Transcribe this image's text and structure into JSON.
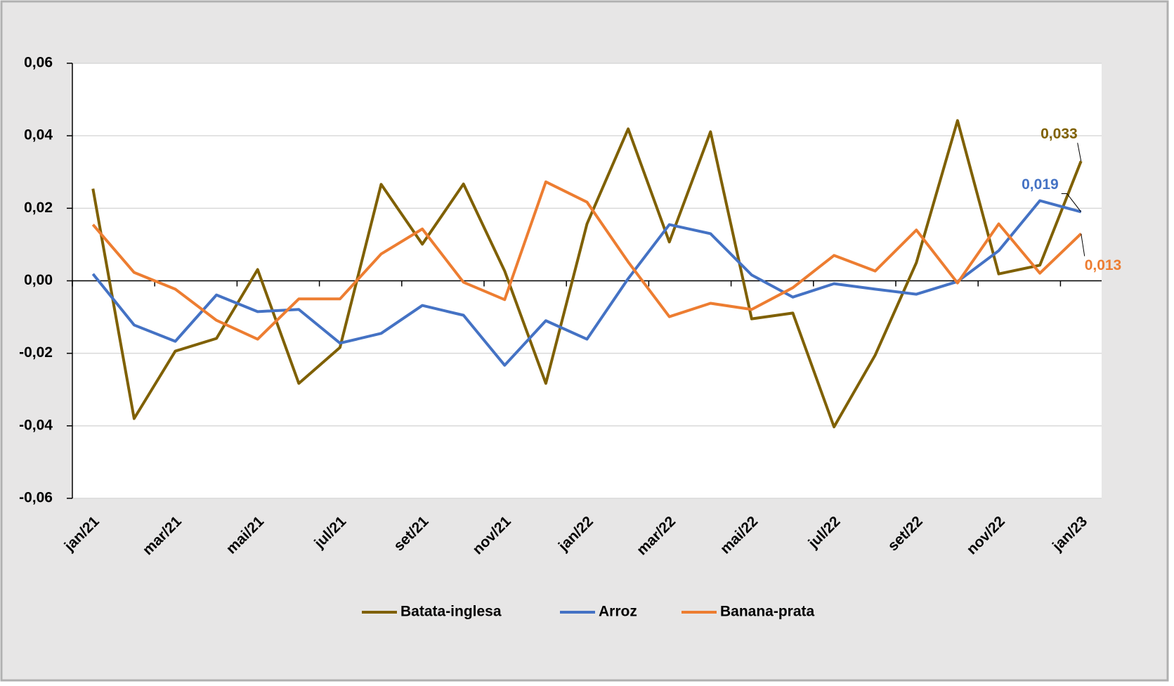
{
  "chart_data": {
    "type": "line",
    "categories": [
      "jan/21",
      null,
      "mar/21",
      null,
      "mai/21",
      null,
      "jul/21",
      null,
      "set/21",
      null,
      "nov/21",
      null,
      "jan/22",
      null,
      "mar/22",
      null,
      "mai/22",
      null,
      "jul/22",
      null,
      "set/22",
      null,
      "nov/22",
      null,
      "jan/23"
    ],
    "series": [
      {
        "name": "Batata-inglesa",
        "color": "#7f6000",
        "values": [
          0.0254,
          -0.038,
          -0.0194,
          -0.0159,
          0.0031,
          -0.0283,
          -0.0184,
          0.0266,
          0.0101,
          0.0267,
          0.0027,
          -0.0283,
          0.0157,
          0.0419,
          0.0107,
          0.0411,
          -0.0105,
          -0.0089,
          -0.0403,
          -0.0205,
          0.005,
          0.0442,
          0.0019,
          0.0043,
          0.033
        ],
        "value_labels": [
          null,
          null,
          null,
          null,
          null,
          null,
          null,
          null,
          null,
          null,
          null,
          null,
          null,
          null,
          null,
          null,
          null,
          null,
          null,
          null,
          null,
          null,
          null,
          null,
          "0,033"
        ]
      },
      {
        "name": "Arroz",
        "color": "#4472c4",
        "values": [
          0.0019,
          -0.0122,
          -0.0167,
          -0.0039,
          -0.0085,
          -0.0079,
          -0.0172,
          -0.0145,
          -0.0068,
          -0.0095,
          -0.0233,
          -0.011,
          -0.0161,
          0.0006,
          0.0155,
          0.013,
          0.0016,
          -0.0045,
          -0.0008,
          -0.0023,
          -0.0037,
          -0.0002,
          0.0083,
          0.0221,
          0.019
        ],
        "value_labels": [
          null,
          null,
          null,
          null,
          null,
          null,
          null,
          null,
          null,
          null,
          null,
          null,
          null,
          null,
          null,
          null,
          null,
          null,
          null,
          null,
          null,
          null,
          null,
          null,
          "0,019"
        ]
      },
      {
        "name": "Banana-prata",
        "color": "#ed7d31",
        "values": [
          0.0155,
          0.0023,
          -0.0023,
          -0.0109,
          -0.0161,
          -0.005,
          -0.005,
          0.0074,
          0.0143,
          -0.0004,
          -0.0052,
          0.0273,
          0.0217,
          0.0052,
          -0.0099,
          -0.0062,
          -0.0079,
          -0.0019,
          0.007,
          0.0027,
          0.014,
          -0.0006,
          0.0157,
          0.0021,
          0.013
        ],
        "value_labels": [
          null,
          null,
          null,
          null,
          null,
          null,
          null,
          null,
          null,
          null,
          null,
          null,
          null,
          null,
          null,
          null,
          null,
          null,
          null,
          null,
          null,
          null,
          null,
          null,
          "0,013"
        ]
      }
    ],
    "ylim": [
      -0.06,
      0.06
    ],
    "yticks": [
      {
        "value": -0.06,
        "label": "-0,06"
      },
      {
        "value": -0.04,
        "label": "-0,04"
      },
      {
        "value": -0.02,
        "label": "-0,02"
      },
      {
        "value": 0,
        "label": "0,00"
      },
      {
        "value": 0.02,
        "label": "0,02"
      },
      {
        "value": 0.04,
        "label": "0,04"
      },
      {
        "value": 0.06,
        "label": "0,06"
      }
    ],
    "grid": true,
    "legend": "bottom"
  }
}
